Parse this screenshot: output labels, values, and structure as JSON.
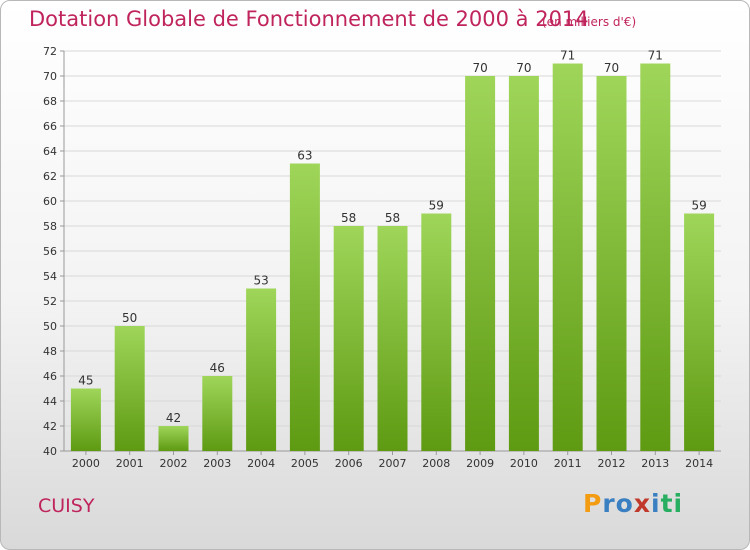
{
  "title": "Dotation Globale de Fonctionnement de 2000 à 2014",
  "subtitle": "(en milliers d'€)",
  "commune": "CUISY",
  "logo": {
    "text": "Proxiti",
    "letters": [
      "P",
      "r",
      "o",
      "x",
      "i",
      "t",
      "i"
    ],
    "colors": [
      "#f39c12",
      "#3a7fc1",
      "#3a7fc1",
      "#c0392b",
      "#3a7fc1",
      "#27ae60",
      "#27ae60"
    ]
  },
  "colors": {
    "accent": "#c0245c",
    "bar_top": "#9fd65a",
    "bar_bottom": "#5e9a12"
  },
  "chart_data": {
    "type": "bar",
    "title": "Dotation Globale de Fonctionnement de 2000 à 2014",
    "categories": [
      "2000",
      "2001",
      "2002",
      "2003",
      "2004",
      "2005",
      "2006",
      "2007",
      "2008",
      "2009",
      "2010",
      "2011",
      "2012",
      "2013",
      "2014"
    ],
    "values": [
      45,
      50,
      42,
      46,
      53,
      63,
      58,
      58,
      59,
      70,
      70,
      71,
      70,
      71,
      59
    ],
    "ylim": [
      40,
      72
    ],
    "yticks": [
      40,
      42,
      44,
      46,
      48,
      50,
      52,
      54,
      56,
      58,
      60,
      62,
      64,
      66,
      68,
      70,
      72
    ],
    "grid": true
  }
}
